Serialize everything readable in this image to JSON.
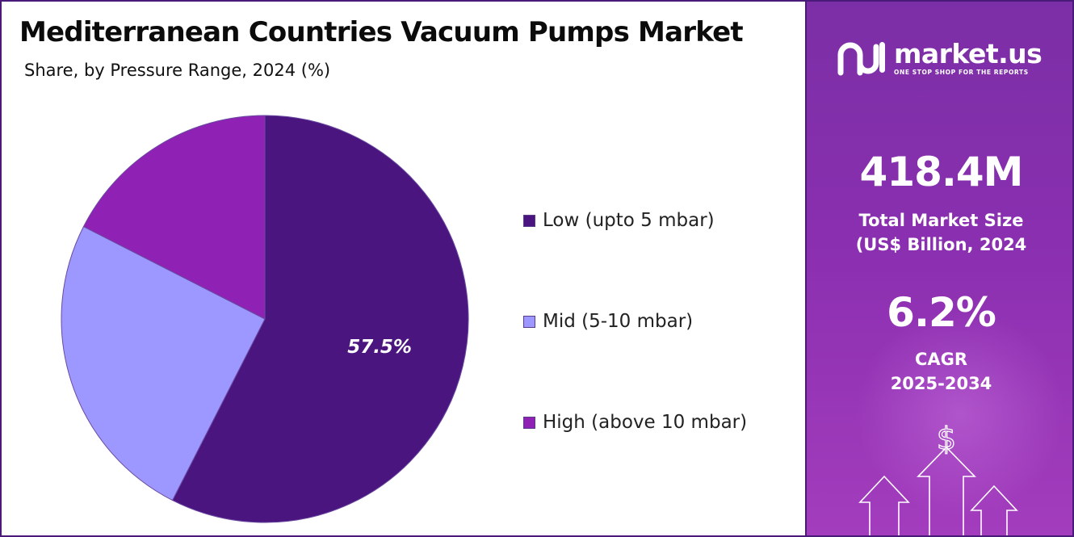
{
  "title": "Mediterranean Countries Vacuum Pumps Market",
  "subtitle": "Share, by Pressure Range, 2024 (%)",
  "chart_data": {
    "type": "pie",
    "title": "Mediterranean Countries Vacuum Pumps Market",
    "subtitle": "Share, by Pressure Range, 2024 (%)",
    "categories": [
      "Low (upto 5 mbar)",
      "Mid (5-10 mbar)",
      "High (above 10 mbar)"
    ],
    "values": [
      57.5,
      25.0,
      17.5
    ],
    "data_labels": [
      "57.5%"
    ],
    "colors": [
      "#4b1580",
      "#9d98ff",
      "#8f22b5"
    ],
    "start_angle_deg": 0,
    "direction": "clockwise",
    "legend_position": "right"
  },
  "brand": {
    "name": "market.us",
    "tagline": "ONE STOP SHOP FOR THE REPORTS"
  },
  "stats": {
    "market_size_value": "418.4M",
    "market_size_label_line1": "Total Market Size",
    "market_size_label_line2": "(US$ Billion, 2024",
    "cagr_value": "6.2%",
    "cagr_label_line1": "CAGR",
    "cagr_label_line2": "2025-2034"
  },
  "icons": {
    "dollar_symbol": "$",
    "brand_icon": "market-us-logo-icon",
    "growth_icon": "growth-arrows-icon"
  },
  "colors": {
    "panel_gradient_top": "#7b2fa6",
    "panel_gradient_bottom": "#a33dbd",
    "border": "#4a1a7a"
  }
}
